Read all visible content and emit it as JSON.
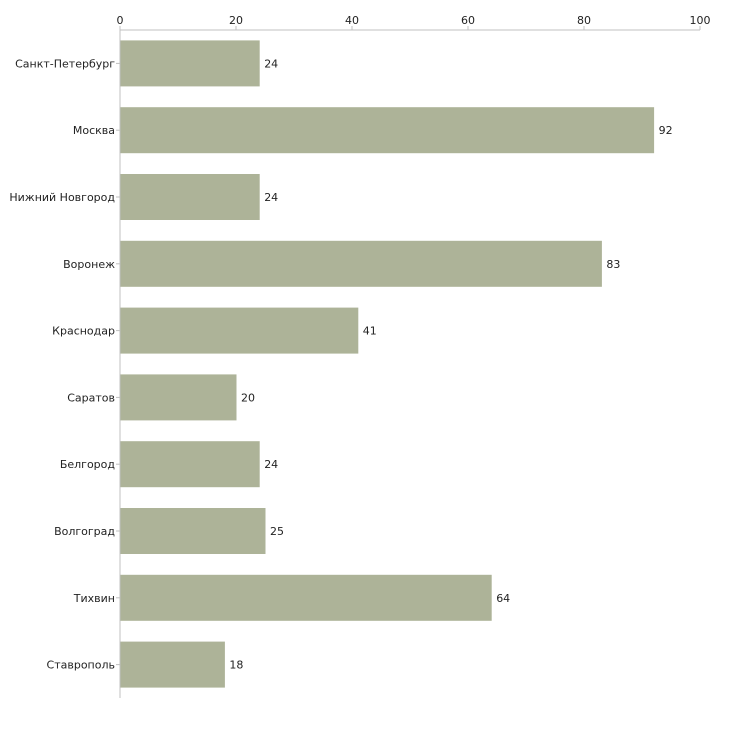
{
  "chart_data": {
    "type": "bar",
    "orientation": "horizontal",
    "title": "",
    "xlabel": "",
    "ylabel": "",
    "xlim": [
      0,
      100
    ],
    "xticks": [
      0,
      20,
      40,
      60,
      80,
      100
    ],
    "categories": [
      "Санкт-Петербург",
      "Москва",
      "Нижний Новгород",
      "Воронеж",
      "Краснодар",
      "Саратов",
      "Белгород",
      "Волгоград",
      "Тихвин",
      "Ставрополь"
    ],
    "values": [
      24,
      92,
      24,
      83,
      41,
      20,
      24,
      25,
      64,
      18
    ],
    "bar_color": "#adb398",
    "grid": false,
    "legend": "none",
    "value_labels": true
  }
}
